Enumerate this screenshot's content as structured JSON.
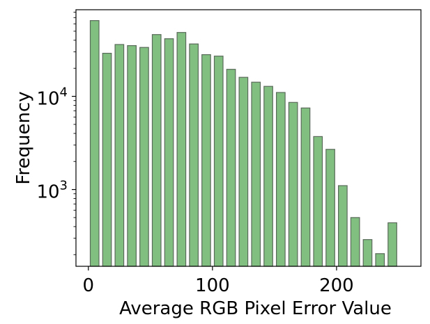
{
  "chart_data": {
    "type": "bar",
    "title": "",
    "xlabel": "Average RGB Pixel Error Value",
    "ylabel": "Frequency",
    "yscale": "log",
    "xlim": [
      -10,
      268
    ],
    "ylim": [
      150,
      85000
    ],
    "bar_width": 7,
    "grid": false,
    "legend": "none",
    "x": [
      5,
      15,
      25,
      35,
      45,
      55,
      65,
      75,
      85,
      95,
      105,
      115,
      125,
      135,
      145,
      155,
      165,
      175,
      185,
      195,
      205,
      215,
      225,
      235,
      245
    ],
    "values": [
      65000,
      29000,
      36000,
      35000,
      33500,
      46000,
      41500,
      48500,
      36500,
      28000,
      27000,
      19500,
      16000,
      14200,
      12800,
      11000,
      8600,
      7500,
      3700,
      2700,
      1100,
      500,
      290,
      205,
      440
    ],
    "x_ticks": [
      {
        "value": 0,
        "label": "0"
      },
      {
        "value": 100,
        "label": "100"
      },
      {
        "value": 200,
        "label": "200"
      }
    ],
    "y_ticks": [
      {
        "value": 1000,
        "base": "10",
        "exp": "3"
      },
      {
        "value": 10000,
        "base": "10",
        "exp": "4"
      }
    ],
    "colors": {
      "bar_fill": "#80bf80",
      "bar_edge": "#5a6a5a",
      "axis": "#000000"
    }
  }
}
